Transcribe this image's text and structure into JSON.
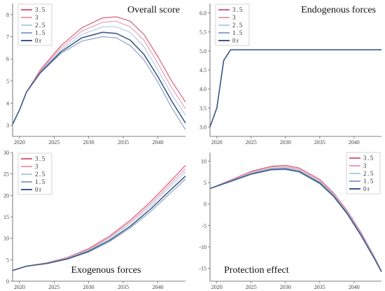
{
  "colors": {
    "s35": "#d8607a",
    "s3": "#ec9fb0",
    "s25": "#b4cde4",
    "s15": "#8fa6c4",
    "s0": "#3d5a8a"
  },
  "chart_data": [
    {
      "id": "overall",
      "type": "line",
      "title": "Overall score",
      "title_position": "top-right",
      "legend_placement": "top-left",
      "xlim": [
        2019,
        2044
      ],
      "ylim": [
        2.5,
        8.5
      ],
      "x_ticks": [
        2020,
        2025,
        2030,
        2035,
        2040
      ],
      "y_ticks": [
        3,
        4,
        5,
        6,
        7,
        8
      ],
      "series": [
        {
          "name": "3.5",
          "color_key": "s35",
          "points": [
            [
              2019,
              3.05
            ],
            [
              2020,
              3.7
            ],
            [
              2021,
              4.5
            ],
            [
              2023,
              5.5
            ],
            [
              2026,
              6.6
            ],
            [
              2029,
              7.4
            ],
            [
              2032,
              7.85
            ],
            [
              2034,
              7.9
            ],
            [
              2036,
              7.7
            ],
            [
              2038,
              7.1
            ],
            [
              2040,
              6.1
            ],
            [
              2042,
              5.0
            ],
            [
              2044,
              4.05
            ]
          ]
        },
        {
          "name": "3",
          "color_key": "s3",
          "points": [
            [
              2019,
              3.05
            ],
            [
              2020,
              3.7
            ],
            [
              2021,
              4.5
            ],
            [
              2023,
              5.45
            ],
            [
              2026,
              6.5
            ],
            [
              2029,
              7.25
            ],
            [
              2032,
              7.65
            ],
            [
              2034,
              7.7
            ],
            [
              2036,
              7.45
            ],
            [
              2038,
              6.85
            ],
            [
              2040,
              5.8
            ],
            [
              2042,
              4.7
            ],
            [
              2044,
              3.75
            ]
          ]
        },
        {
          "name": "2.5",
          "color_key": "s25",
          "points": [
            [
              2019,
              3.05
            ],
            [
              2020,
              3.7
            ],
            [
              2021,
              4.5
            ],
            [
              2023,
              5.4
            ],
            [
              2026,
              6.4
            ],
            [
              2029,
              7.1
            ],
            [
              2032,
              7.45
            ],
            [
              2034,
              7.45
            ],
            [
              2036,
              7.2
            ],
            [
              2038,
              6.55
            ],
            [
              2040,
              5.5
            ],
            [
              2042,
              4.4
            ],
            [
              2044,
              3.45
            ]
          ]
        },
        {
          "name": "1.5",
          "color_key": "s15",
          "points": [
            [
              2019,
              3.05
            ],
            [
              2020,
              3.7
            ],
            [
              2021,
              4.5
            ],
            [
              2023,
              5.35
            ],
            [
              2026,
              6.25
            ],
            [
              2029,
              6.8
            ],
            [
              2032,
              7.0
            ],
            [
              2034,
              6.95
            ],
            [
              2036,
              6.6
            ],
            [
              2038,
              5.95
            ],
            [
              2040,
              4.95
            ],
            [
              2042,
              3.8
            ],
            [
              2044,
              2.8
            ]
          ]
        },
        {
          "name": "0r",
          "color_key": "s0",
          "points": [
            [
              2019,
              3.05
            ],
            [
              2020,
              3.7
            ],
            [
              2021,
              4.5
            ],
            [
              2023,
              5.38
            ],
            [
              2026,
              6.32
            ],
            [
              2029,
              6.95
            ],
            [
              2032,
              7.2
            ],
            [
              2034,
              7.15
            ],
            [
              2036,
              6.85
            ],
            [
              2038,
              6.2
            ],
            [
              2040,
              5.2
            ],
            [
              2042,
              4.1
            ],
            [
              2044,
              3.1
            ]
          ]
        }
      ]
    },
    {
      "id": "endogenous",
      "type": "line",
      "title": "Endogenous forces",
      "title_position": "top-right",
      "legend_placement": "top-left",
      "xlim": [
        2019,
        2044
      ],
      "ylim": [
        2.75,
        6.25
      ],
      "x_ticks": [
        2020,
        2025,
        2030,
        2035,
        2040
      ],
      "y_ticks": [
        3.0,
        3.5,
        4.0,
        4.5,
        5.0,
        5.5,
        6.0
      ],
      "series": [
        {
          "name": "3.5",
          "color_key": "s35",
          "points": [
            [
              2019,
              3.0
            ],
            [
              2020,
              3.5
            ],
            [
              2021,
              4.75
            ],
            [
              2022,
              5.03
            ],
            [
              2044,
              5.03
            ]
          ]
        },
        {
          "name": "3",
          "color_key": "s3",
          "points": [
            [
              2019,
              3.0
            ],
            [
              2020,
              3.5
            ],
            [
              2021,
              4.75
            ],
            [
              2022,
              5.03
            ],
            [
              2044,
              5.03
            ]
          ]
        },
        {
          "name": "2.5",
          "color_key": "s25",
          "points": [
            [
              2019,
              3.0
            ],
            [
              2020,
              3.5
            ],
            [
              2021,
              4.75
            ],
            [
              2022,
              5.03
            ],
            [
              2044,
              5.03
            ]
          ]
        },
        {
          "name": "1.5",
          "color_key": "s15",
          "points": [
            [
              2019,
              3.0
            ],
            [
              2020,
              3.5
            ],
            [
              2021,
              4.75
            ],
            [
              2022,
              5.03
            ],
            [
              2044,
              5.03
            ]
          ]
        },
        {
          "name": "0r",
          "color_key": "s0",
          "points": [
            [
              2019,
              3.0
            ],
            [
              2020,
              3.5
            ],
            [
              2021,
              4.75
            ],
            [
              2022,
              5.03
            ],
            [
              2044,
              5.03
            ]
          ]
        }
      ]
    },
    {
      "id": "exogenous",
      "type": "line",
      "title": "Exogenous forces",
      "title_position": "bottom-center",
      "legend_placement": "top-left",
      "xlim": [
        2019,
        2044
      ],
      "ylim": [
        0,
        30
      ],
      "x_ticks": [
        2020,
        2025,
        2030,
        2035,
        2040
      ],
      "y_ticks": [
        0,
        5,
        10,
        15,
        20,
        25,
        30
      ],
      "series": [
        {
          "name": "3.5",
          "color_key": "s35",
          "points": [
            [
              2019,
              2.5
            ],
            [
              2021,
              3.5
            ],
            [
              2024,
              4.3
            ],
            [
              2027,
              5.6
            ],
            [
              2030,
              7.6
            ],
            [
              2033,
              10.5
            ],
            [
              2036,
              14.2
            ],
            [
              2039,
              18.6
            ],
            [
              2042,
              23.6
            ],
            [
              2044,
              27.0
            ]
          ]
        },
        {
          "name": "3",
          "color_key": "s3",
          "points": [
            [
              2019,
              2.5
            ],
            [
              2021,
              3.5
            ],
            [
              2024,
              4.25
            ],
            [
              2027,
              5.5
            ],
            [
              2030,
              7.4
            ],
            [
              2033,
              10.2
            ],
            [
              2036,
              13.8
            ],
            [
              2039,
              18.1
            ],
            [
              2042,
              23.0
            ],
            [
              2044,
              26.2
            ]
          ]
        },
        {
          "name": "2.5",
          "color_key": "s25",
          "points": [
            [
              2019,
              2.5
            ],
            [
              2021,
              3.5
            ],
            [
              2024,
              4.2
            ],
            [
              2027,
              5.4
            ],
            [
              2030,
              7.2
            ],
            [
              2033,
              9.9
            ],
            [
              2036,
              13.4
            ],
            [
              2039,
              17.6
            ],
            [
              2042,
              22.4
            ],
            [
              2044,
              25.5
            ]
          ]
        },
        {
          "name": "1.5",
          "color_key": "s15",
          "points": [
            [
              2019,
              2.5
            ],
            [
              2021,
              3.45
            ],
            [
              2024,
              4.1
            ],
            [
              2027,
              5.15
            ],
            [
              2030,
              6.8
            ],
            [
              2033,
              9.2
            ],
            [
              2036,
              12.4
            ],
            [
              2039,
              16.3
            ],
            [
              2042,
              20.8
            ],
            [
              2044,
              23.8
            ]
          ]
        },
        {
          "name": "0r",
          "color_key": "s0",
          "points": [
            [
              2019,
              2.5
            ],
            [
              2021,
              3.5
            ],
            [
              2024,
              4.15
            ],
            [
              2027,
              5.25
            ],
            [
              2030,
              7.0
            ],
            [
              2033,
              9.5
            ],
            [
              2036,
              12.8
            ],
            [
              2039,
              16.9
            ],
            [
              2042,
              21.5
            ],
            [
              2044,
              24.5
            ]
          ]
        }
      ]
    },
    {
      "id": "protection",
      "type": "line",
      "title": "Protection effect",
      "title_position": "bottom-left",
      "legend_placement": "top-right",
      "xlim": [
        2019,
        2044
      ],
      "ylim": [
        -18,
        12
      ],
      "x_ticks": [
        2020,
        2025,
        2030,
        2035,
        2040
      ],
      "y_ticks": [
        -15,
        -10,
        -5,
        0,
        5,
        10
      ],
      "series": [
        {
          "name": "3.5",
          "color_key": "s35",
          "points": [
            [
              2019,
              3.6
            ],
            [
              2022,
              5.6
            ],
            [
              2025,
              7.6
            ],
            [
              2028,
              8.8
            ],
            [
              2030,
              9.0
            ],
            [
              2032,
              8.4
            ],
            [
              2035,
              5.7
            ],
            [
              2037,
              2.6
            ],
            [
              2039,
              -1.6
            ],
            [
              2041,
              -6.6
            ],
            [
              2043,
              -12.4
            ],
            [
              2044,
              -15.6
            ]
          ]
        },
        {
          "name": "3",
          "color_key": "s3",
          "points": [
            [
              2019,
              3.6
            ],
            [
              2022,
              5.5
            ],
            [
              2025,
              7.4
            ],
            [
              2028,
              8.6
            ],
            [
              2030,
              8.7
            ],
            [
              2032,
              8.1
            ],
            [
              2035,
              5.4
            ],
            [
              2037,
              2.4
            ],
            [
              2039,
              -1.8
            ],
            [
              2041,
              -6.8
            ],
            [
              2043,
              -12.5
            ],
            [
              2044,
              -15.6
            ]
          ]
        },
        {
          "name": "2.5",
          "color_key": "s25",
          "points": [
            [
              2019,
              3.6
            ],
            [
              2022,
              5.4
            ],
            [
              2025,
              7.2
            ],
            [
              2028,
              8.4
            ],
            [
              2030,
              8.5
            ],
            [
              2032,
              7.9
            ],
            [
              2035,
              5.2
            ],
            [
              2037,
              2.2
            ],
            [
              2039,
              -2.0
            ],
            [
              2041,
              -7.0
            ],
            [
              2043,
              -12.6
            ],
            [
              2044,
              -15.7
            ]
          ]
        },
        {
          "name": "1.5",
          "color_key": "s15",
          "points": [
            [
              2019,
              3.6
            ],
            [
              2022,
              5.2
            ],
            [
              2025,
              6.9
            ],
            [
              2028,
              7.9
            ],
            [
              2030,
              8.0
            ],
            [
              2032,
              7.4
            ],
            [
              2035,
              4.7
            ],
            [
              2037,
              1.7
            ],
            [
              2039,
              -2.4
            ],
            [
              2041,
              -7.4
            ],
            [
              2043,
              -12.9
            ],
            [
              2044,
              -15.8
            ]
          ]
        },
        {
          "name": "0r",
          "color_key": "s0",
          "points": [
            [
              2019,
              3.6
            ],
            [
              2022,
              5.3
            ],
            [
              2025,
              7.0
            ],
            [
              2028,
              8.1
            ],
            [
              2030,
              8.2
            ],
            [
              2032,
              7.6
            ],
            [
              2035,
              4.9
            ],
            [
              2037,
              1.9
            ],
            [
              2039,
              -2.2
            ],
            [
              2041,
              -7.2
            ],
            [
              2043,
              -12.8
            ],
            [
              2044,
              -15.8
            ]
          ]
        }
      ]
    }
  ]
}
